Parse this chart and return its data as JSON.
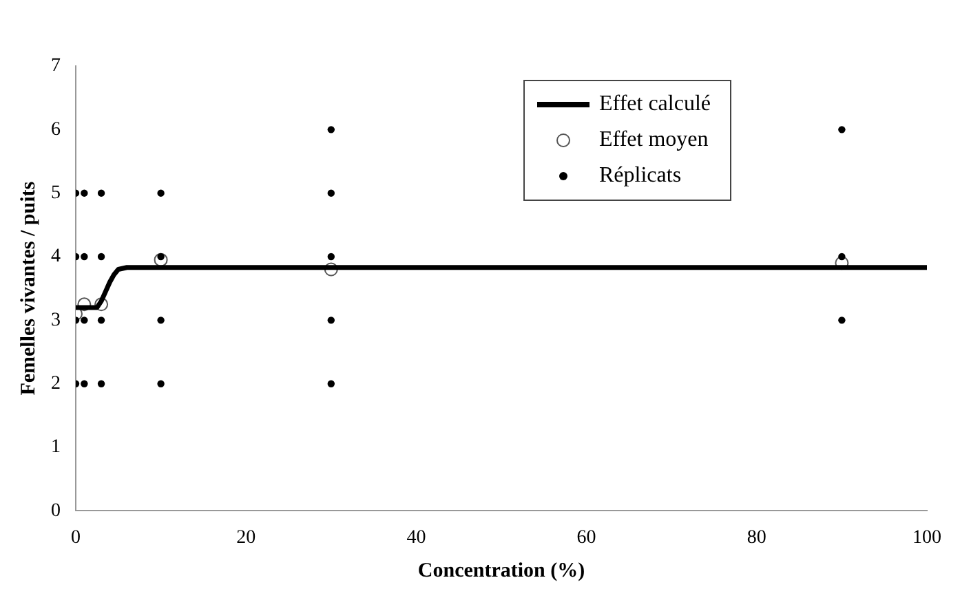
{
  "chart_data": {
    "type": "scatter",
    "xlabel": "Concentration (%)",
    "ylabel": "Femelles vivantes / puits",
    "xlim": [
      0,
      100
    ],
    "xticks": [
      0,
      20,
      40,
      60,
      80,
      100
    ],
    "ylim": [
      0,
      7
    ],
    "yticks": [
      0,
      1,
      2,
      3,
      4,
      5,
      6,
      7
    ],
    "grid": false,
    "legend": "top right",
    "series": [
      {
        "name": "Effet calculé",
        "type": "line",
        "color": "#000000",
        "marker": "none",
        "x": [
          0,
          2.5,
          3,
          3.5,
          4,
          4.5,
          5,
          6,
          100
        ],
        "values": [
          3.2,
          3.2,
          3.3,
          3.45,
          3.6,
          3.72,
          3.8,
          3.83,
          3.83
        ]
      },
      {
        "name": "Effet moyen",
        "type": "scatter",
        "color": "#555555",
        "marker": "circle",
        "x": [
          0,
          1,
          3,
          10,
          30,
          90
        ],
        "values": [
          3.1,
          3.25,
          3.25,
          3.95,
          3.8,
          3.9
        ]
      },
      {
        "name": "Réplicats",
        "type": "scatter",
        "color": "#000000",
        "marker": "circle",
        "x": [
          0,
          0,
          0,
          0,
          1,
          1,
          1,
          1,
          3,
          3,
          3,
          3,
          10,
          10,
          10,
          10,
          30,
          30,
          30,
          30,
          30,
          90,
          90,
          90
        ],
        "values": [
          2,
          3,
          4,
          5,
          2,
          3,
          4,
          5,
          2,
          3,
          4,
          5,
          2,
          3,
          4,
          5,
          2,
          3,
          4,
          5,
          6,
          3,
          4,
          6
        ]
      }
    ]
  }
}
